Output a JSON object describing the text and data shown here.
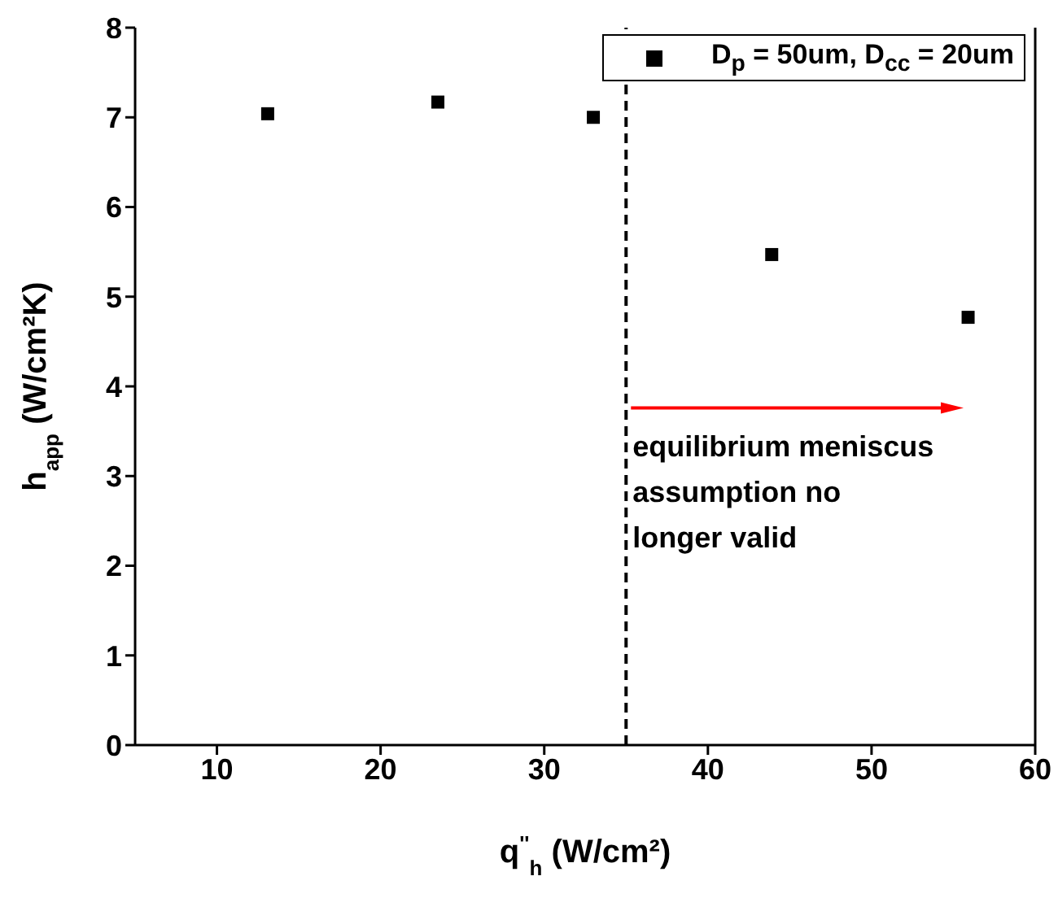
{
  "chart_data": {
    "type": "scatter",
    "xlabel": "q$^{''}$$_{h}$ (W/cm²)",
    "ylabel": "h$_{app}$ (W/cm²K)",
    "x": [
      13.1,
      23.5,
      33.0,
      43.9,
      55.9
    ],
    "series": [
      {
        "name": "D$_{p}$ = 50um, D$_{cc}$ = 20um",
        "color": "#000000",
        "values": [
          7.04,
          7.17,
          7.0,
          5.47,
          4.77
        ]
      }
    ],
    "marker": "square",
    "xlim": [
      5,
      60
    ],
    "xticks": [
      10,
      20,
      30,
      40,
      50,
      60
    ],
    "ylim": [
      0,
      8
    ],
    "yticks": [
      0,
      1,
      2,
      3,
      4,
      5,
      6,
      7,
      8
    ],
    "grid": false,
    "legend": "top right",
    "ref_lines": [
      {
        "axis": "x",
        "value": 35,
        "label": "equilibrium meniscus\nassumption no\nlonger valid",
        "color": "#000000",
        "line_style": "dashed"
      }
    ]
  }
}
